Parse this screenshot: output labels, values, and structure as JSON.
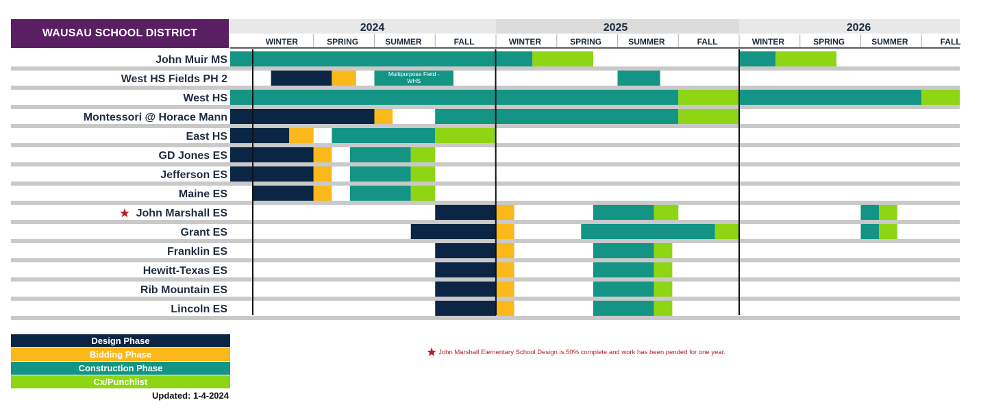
{
  "header": {
    "title": "WAUSAU SCHOOL DISTRICT",
    "updated": "Updated: 1-4-2024"
  },
  "colors": {
    "title_bg": "#5a1f63",
    "design": "#0b2545",
    "bidding": "#fbb81a",
    "construction": "#149484",
    "cx": "#8ed514",
    "row_line": "#c9c9c9",
    "header_bg": "#e8e8e8",
    "star": "#c0181f"
  },
  "legend": [
    {
      "label": "Design Phase",
      "phase": "design"
    },
    {
      "label": "Bidding Phase",
      "phase": "bidding"
    },
    {
      "label": "Construction Phase",
      "phase": "construction"
    },
    {
      "label": "Cx/Punchlist",
      "phase": "cx"
    }
  ],
  "note": {
    "text": "John Marshall Elementary School Design is 50% complete and work has been pended for one year.",
    "icon": "star-icon"
  },
  "chart_data": {
    "type": "gantt",
    "x_unit": "season index (0 = Winter 2024, 12 = end of Fall 2026)",
    "years": [
      "2024",
      "2025",
      "2026"
    ],
    "seasons": [
      "WINTER",
      "SPRING",
      "SUMMER",
      "FALL"
    ],
    "rows": [
      {
        "name": "John Muir MS",
        "segments": [
          {
            "phase": "construction",
            "start": -0.4,
            "end": 4.6
          },
          {
            "phase": "cx",
            "start": 4.6,
            "end": 5.6
          },
          {
            "phase": "construction",
            "start": 8.0,
            "end": 8.6
          },
          {
            "phase": "cx",
            "start": 8.6,
            "end": 9.6
          }
        ]
      },
      {
        "name": "West HS Fields PH 2",
        "segments": [
          {
            "phase": "design",
            "start": 0.3,
            "end": 1.3
          },
          {
            "phase": "bidding",
            "start": 1.3,
            "end": 1.7
          },
          {
            "phase": "construction",
            "start": 2.0,
            "end": 3.3,
            "label": "Multipurpose Field - WHS"
          },
          {
            "phase": "construction",
            "start": 6.0,
            "end": 6.7
          }
        ]
      },
      {
        "name": "West HS",
        "segments": [
          {
            "phase": "construction",
            "start": -0.4,
            "end": 7.0
          },
          {
            "phase": "cx",
            "start": 7.0,
            "end": 8.0
          },
          {
            "phase": "construction",
            "start": 8.0,
            "end": 11.0
          },
          {
            "phase": "cx",
            "start": 11.0,
            "end": 12.0
          }
        ]
      },
      {
        "name": "Montessori @ Horace Mann",
        "segments": [
          {
            "phase": "design",
            "start": -0.4,
            "end": 2.0
          },
          {
            "phase": "bidding",
            "start": 2.0,
            "end": 2.3
          },
          {
            "phase": "construction",
            "start": 3.0,
            "end": 7.0
          },
          {
            "phase": "cx",
            "start": 7.0,
            "end": 8.0
          }
        ]
      },
      {
        "name": "East HS",
        "segments": [
          {
            "phase": "design",
            "start": -0.4,
            "end": 0.6
          },
          {
            "phase": "bidding",
            "start": 0.6,
            "end": 1.0
          },
          {
            "phase": "construction",
            "start": 1.3,
            "end": 3.0
          },
          {
            "phase": "cx",
            "start": 3.0,
            "end": 4.0
          }
        ]
      },
      {
        "name": "GD Jones ES",
        "segments": [
          {
            "phase": "design",
            "start": -0.4,
            "end": 1.0
          },
          {
            "phase": "bidding",
            "start": 1.0,
            "end": 1.3
          },
          {
            "phase": "construction",
            "start": 1.6,
            "end": 2.6
          },
          {
            "phase": "cx",
            "start": 2.6,
            "end": 3.0
          }
        ]
      },
      {
        "name": "Jefferson ES",
        "segments": [
          {
            "phase": "design",
            "start": -0.4,
            "end": 1.0
          },
          {
            "phase": "bidding",
            "start": 1.0,
            "end": 1.3
          },
          {
            "phase": "construction",
            "start": 1.6,
            "end": 2.6
          },
          {
            "phase": "cx",
            "start": 2.6,
            "end": 3.0
          }
        ]
      },
      {
        "name": "Maine ES",
        "segments": [
          {
            "phase": "design",
            "start": 0.0,
            "end": 1.0
          },
          {
            "phase": "bidding",
            "start": 1.0,
            "end": 1.3
          },
          {
            "phase": "construction",
            "start": 1.6,
            "end": 2.6
          },
          {
            "phase": "cx",
            "start": 2.6,
            "end": 3.0
          }
        ]
      },
      {
        "name": "John Marshall ES",
        "star": true,
        "segments": [
          {
            "phase": "design",
            "start": 3.0,
            "end": 4.0
          },
          {
            "phase": "bidding",
            "start": 4.0,
            "end": 4.3
          },
          {
            "phase": "construction",
            "start": 5.6,
            "end": 6.6
          },
          {
            "phase": "cx",
            "start": 6.6,
            "end": 7.0
          },
          {
            "phase": "construction",
            "start": 10.0,
            "end": 10.3
          },
          {
            "phase": "cx",
            "start": 10.3,
            "end": 10.6
          }
        ]
      },
      {
        "name": "Grant ES",
        "segments": [
          {
            "phase": "design",
            "start": 2.6,
            "end": 4.0
          },
          {
            "phase": "bidding",
            "start": 4.0,
            "end": 4.3
          },
          {
            "phase": "construction",
            "start": 5.4,
            "end": 7.6
          },
          {
            "phase": "cx",
            "start": 7.6,
            "end": 8.0
          },
          {
            "phase": "construction",
            "start": 10.0,
            "end": 10.3
          },
          {
            "phase": "cx",
            "start": 10.3,
            "end": 10.6
          }
        ]
      },
      {
        "name": "Franklin ES",
        "segments": [
          {
            "phase": "design",
            "start": 3.0,
            "end": 4.0
          },
          {
            "phase": "bidding",
            "start": 4.0,
            "end": 4.3
          },
          {
            "phase": "construction",
            "start": 5.6,
            "end": 6.6
          },
          {
            "phase": "cx",
            "start": 6.6,
            "end": 6.9
          }
        ]
      },
      {
        "name": "Hewitt-Texas ES",
        "segments": [
          {
            "phase": "design",
            "start": 3.0,
            "end": 4.0
          },
          {
            "phase": "bidding",
            "start": 4.0,
            "end": 4.3
          },
          {
            "phase": "construction",
            "start": 5.6,
            "end": 6.6
          },
          {
            "phase": "cx",
            "start": 6.6,
            "end": 6.9
          }
        ]
      },
      {
        "name": "Rib Mountain ES",
        "segments": [
          {
            "phase": "design",
            "start": 3.0,
            "end": 4.0
          },
          {
            "phase": "bidding",
            "start": 4.0,
            "end": 4.3
          },
          {
            "phase": "construction",
            "start": 5.6,
            "end": 6.6
          },
          {
            "phase": "cx",
            "start": 6.6,
            "end": 6.9
          }
        ]
      },
      {
        "name": "Lincoln ES",
        "segments": [
          {
            "phase": "design",
            "start": 3.0,
            "end": 4.0
          },
          {
            "phase": "bidding",
            "start": 4.0,
            "end": 4.3
          },
          {
            "phase": "construction",
            "start": 5.6,
            "end": 6.6
          },
          {
            "phase": "cx",
            "start": 6.6,
            "end": 6.9
          }
        ]
      }
    ]
  }
}
